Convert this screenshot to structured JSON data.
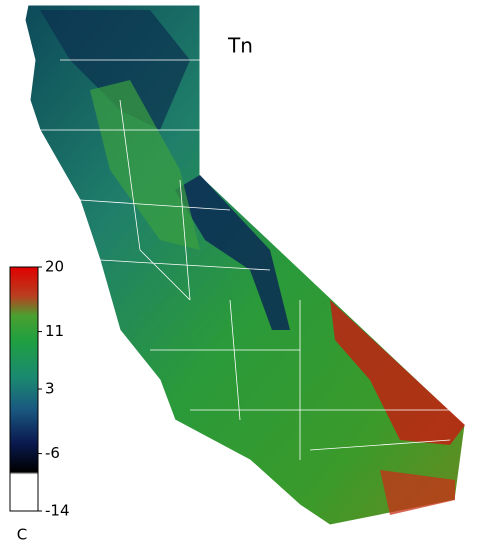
{
  "map": {
    "title": "Tn",
    "colorbar": {
      "lim": [
        -14,
        20
      ],
      "ticks": [
        20,
        11,
        3,
        -6,
        -14
      ],
      "unit": "C"
    }
  }
}
